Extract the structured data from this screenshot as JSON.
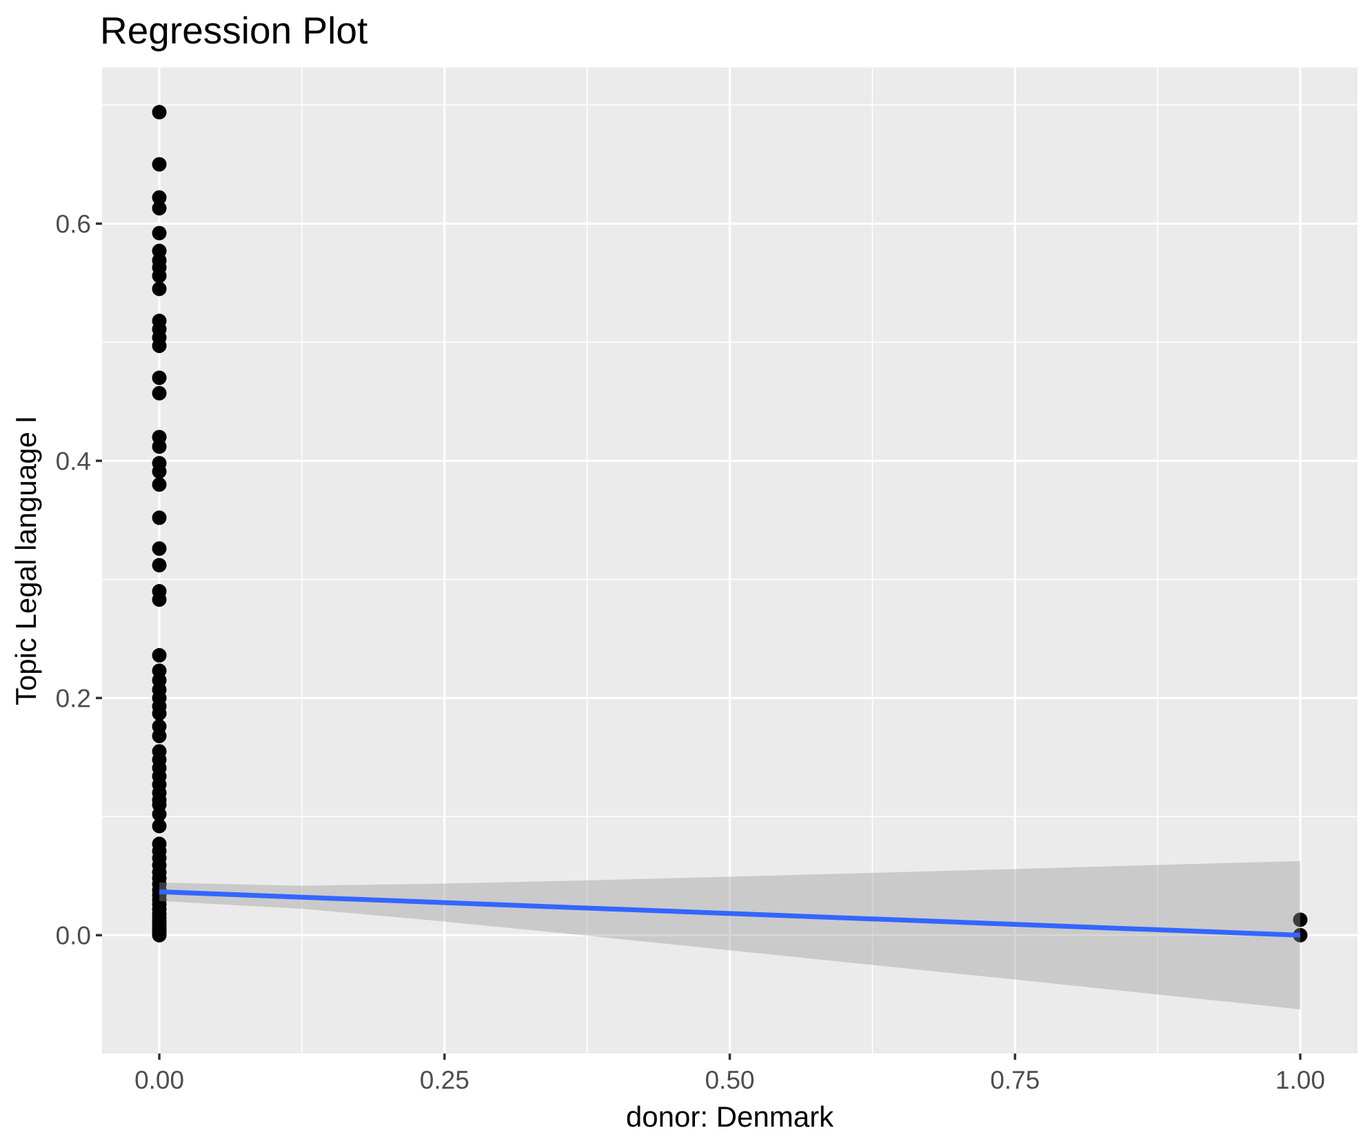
{
  "chart_data": {
    "type": "scatter",
    "title": "Regression Plot",
    "xlabel": "donor: Denmark",
    "ylabel": "Topic Legal language I",
    "legend": false,
    "grid": true,
    "xlim": [
      -0.0502,
      1.0502
    ],
    "ylim": [
      -0.0998,
      0.7316
    ],
    "x_ticks": [
      {
        "value": 0.0,
        "label": "0.00"
      },
      {
        "value": 0.25,
        "label": "0.25"
      },
      {
        "value": 0.5,
        "label": "0.50"
      },
      {
        "value": 0.75,
        "label": "0.75"
      },
      {
        "value": 1.0,
        "label": "1.00"
      }
    ],
    "y_ticks": [
      {
        "value": 0.0,
        "label": "0.0"
      },
      {
        "value": 0.2,
        "label": "0.2"
      },
      {
        "value": 0.4,
        "label": "0.4"
      },
      {
        "value": 0.6,
        "label": "0.6"
      }
    ],
    "x_minor_breaks": [
      0.125,
      0.375,
      0.625,
      0.875
    ],
    "y_minor_breaks": [
      0.1,
      0.3,
      0.5,
      0.7
    ],
    "points": [
      [
        0,
        0.694
      ],
      [
        0,
        0.65
      ],
      [
        0,
        0.622
      ],
      [
        0,
        0.613
      ],
      [
        0,
        0.592
      ],
      [
        0,
        0.577
      ],
      [
        0,
        0.569
      ],
      [
        0,
        0.563
      ],
      [
        0,
        0.556
      ],
      [
        0,
        0.545
      ],
      [
        0,
        0.518
      ],
      [
        0,
        0.511
      ],
      [
        0,
        0.504
      ],
      [
        0,
        0.497
      ],
      [
        0,
        0.47
      ],
      [
        0,
        0.457
      ],
      [
        0,
        0.42
      ],
      [
        0,
        0.412
      ],
      [
        0,
        0.398
      ],
      [
        0,
        0.391
      ],
      [
        0,
        0.38
      ],
      [
        0,
        0.352
      ],
      [
        0,
        0.326
      ],
      [
        0,
        0.312
      ],
      [
        0,
        0.29
      ],
      [
        0,
        0.283
      ],
      [
        0,
        0.236
      ],
      [
        0,
        0.223
      ],
      [
        0,
        0.215
      ],
      [
        0,
        0.207
      ],
      [
        0,
        0.2
      ],
      [
        0,
        0.193
      ],
      [
        0,
        0.187
      ],
      [
        0,
        0.176
      ],
      [
        0,
        0.168
      ],
      [
        0,
        0.155
      ],
      [
        0,
        0.148
      ],
      [
        0,
        0.141
      ],
      [
        0,
        0.134
      ],
      [
        0,
        0.127
      ],
      [
        0,
        0.12
      ],
      [
        0,
        0.114
      ],
      [
        0,
        0.11
      ],
      [
        0,
        0.102
      ],
      [
        0,
        0.092
      ],
      [
        0,
        0.077
      ],
      [
        0,
        0.071
      ],
      [
        0,
        0.065
      ],
      [
        0,
        0.059
      ],
      [
        0,
        0.053
      ],
      [
        0,
        0.048
      ],
      [
        0,
        0.043
      ],
      [
        0,
        0.038
      ],
      [
        0,
        0.034
      ],
      [
        0,
        0.03
      ],
      [
        0,
        0.026
      ],
      [
        0,
        0.022
      ],
      [
        0,
        0.018
      ],
      [
        0,
        0.015
      ],
      [
        0,
        0.012
      ],
      [
        0,
        0.009
      ],
      [
        0,
        0.007
      ],
      [
        0,
        0.005
      ],
      [
        0,
        0.003
      ],
      [
        0,
        0.001
      ],
      [
        0,
        0.0
      ],
      [
        1,
        0.013
      ],
      [
        1,
        0.0
      ]
    ],
    "regression_line": {
      "x": [
        0,
        1
      ],
      "y": [
        0.0366,
        0.0
      ]
    },
    "confidence_band": {
      "x": [
        0,
        0.125,
        0.25,
        0.375,
        0.5,
        0.625,
        0.75,
        0.875,
        1.0
      ],
      "upper": [
        0.0444,
        0.0417,
        0.0435,
        0.0462,
        0.0493,
        0.0525,
        0.0558,
        0.0592,
        0.0625
      ],
      "lower": [
        0.0288,
        0.0223,
        0.0115,
        -0.0004,
        -0.0127,
        -0.0251,
        -0.0374,
        -0.05,
        -0.0625
      ]
    },
    "colors": {
      "panel_background": "#EBEBEB",
      "grid_major": "#FFFFFF",
      "grid_minor": "#FFFFFF",
      "point": "#000000",
      "regression_line": "#3366FF",
      "confidence_band": "#999999",
      "confidence_band_opacity": 0.4,
      "axis_text": "#4D4D4D",
      "tick_mark": "#333333",
      "title_text": "#000000"
    }
  }
}
